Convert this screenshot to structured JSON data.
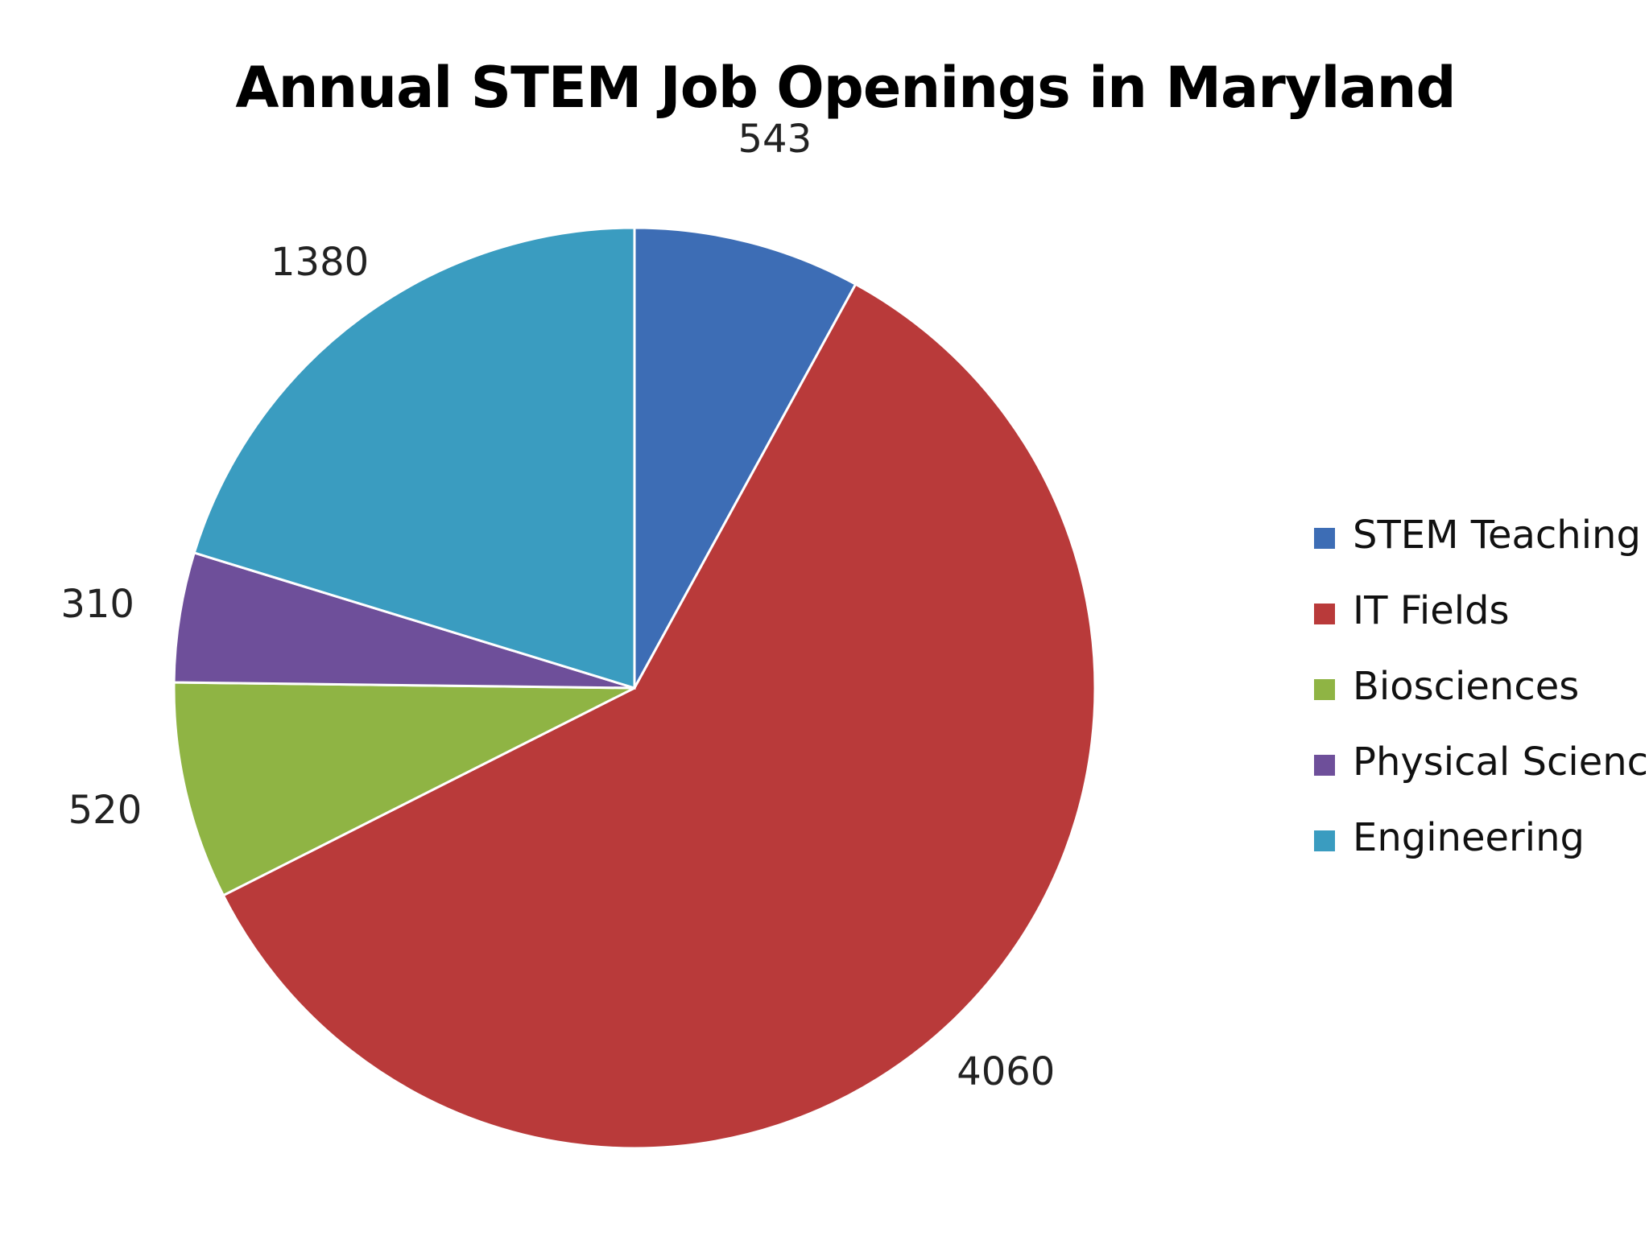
{
  "chart_data": {
    "type": "pie",
    "title": "Annual STEM Job Openings in Maryland",
    "legend_position": "right",
    "categories": [
      "STEM Teaching",
      "IT Fields",
      "Biosciences",
      "Physical Sciences",
      "Engineering"
    ],
    "values": [
      543,
      4060,
      520,
      310,
      1380
    ],
    "colors": [
      "#3d6db5",
      "#b93a3a",
      "#8fb444",
      "#6e4f9a",
      "#3a9cc0"
    ],
    "data_labels": [
      "543",
      "4060",
      "520",
      "310",
      "1380"
    ],
    "legend_labels": [
      "STEM Teaching",
      "IT Fields",
      "Biosciences",
      "Physical Scienc",
      "Engineering"
    ]
  }
}
